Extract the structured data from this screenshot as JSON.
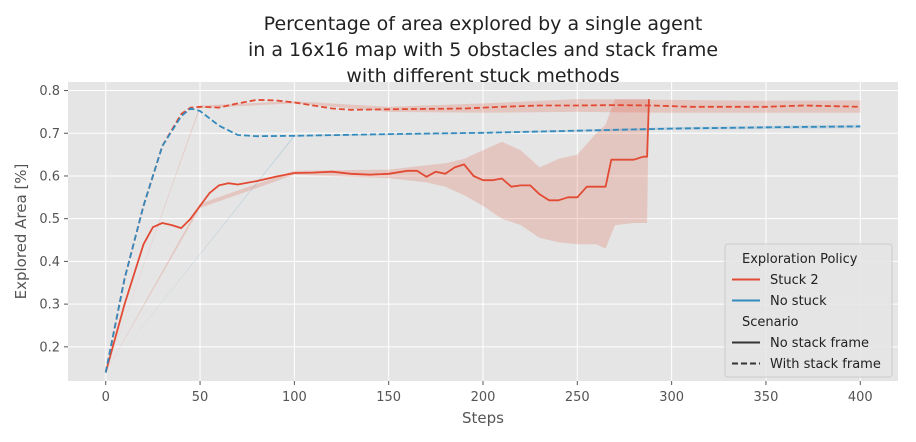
{
  "chart_data": {
    "type": "line",
    "title": "Percentage of area explored by a single agent\nin a 16x16 map with 5 obstacles and stack frame\nwith different stuck methods",
    "xlabel": "Steps",
    "ylabel": "Explored Area [%]",
    "xlim": [
      -20,
      420
    ],
    "ylim": [
      0.12,
      0.82
    ],
    "xticks": [
      0,
      50,
      100,
      150,
      200,
      250,
      300,
      350,
      400
    ],
    "yticks": [
      0.2,
      0.3,
      0.4,
      0.5,
      0.6,
      0.7,
      0.8
    ],
    "grid": true,
    "legend": {
      "placement": "lower-right",
      "policy_title": "Exploration Policy",
      "scenario_title": "Scenario",
      "policy_entries": [
        {
          "label": "Stuck 2",
          "color": "#E24A33"
        },
        {
          "label": "No stuck",
          "color": "#348ABD"
        }
      ],
      "scenario_entries": [
        {
          "label": "No stack frame",
          "style": "solid"
        },
        {
          "label": "With stack frame",
          "style": "dashed"
        }
      ]
    },
    "series": [
      {
        "policy": "Stuck 2",
        "scenario": "No stack frame",
        "color": "#E24A33",
        "style": "solid",
        "x": [
          0,
          10,
          20,
          25,
          30,
          35,
          40,
          45,
          50,
          55,
          60,
          65,
          70,
          80,
          90,
          100,
          110,
          120,
          130,
          140,
          150,
          160,
          165,
          170,
          175,
          180,
          185,
          190,
          195,
          200,
          205,
          210,
          215,
          220,
          225,
          230,
          235,
          240,
          245,
          250,
          255,
          260,
          265,
          268,
          275,
          280,
          285,
          287,
          288
        ],
        "y": [
          0.14,
          0.3,
          0.44,
          0.48,
          0.49,
          0.485,
          0.478,
          0.5,
          0.53,
          0.56,
          0.578,
          0.583,
          0.58,
          0.588,
          0.598,
          0.607,
          0.608,
          0.61,
          0.605,
          0.603,
          0.605,
          0.612,
          0.612,
          0.598,
          0.61,
          0.605,
          0.62,
          0.627,
          0.6,
          0.59,
          0.59,
          0.594,
          0.575,
          0.578,
          0.578,
          0.557,
          0.543,
          0.543,
          0.55,
          0.55,
          0.575,
          0.575,
          0.575,
          0.638,
          0.638,
          0.638,
          0.645,
          0.645,
          0.78
        ]
      },
      {
        "policy": "Stuck 2",
        "scenario": "With stack frame",
        "color": "#E24A33",
        "style": "dashed",
        "x": [
          0,
          10,
          20,
          30,
          40,
          45,
          50,
          60,
          70,
          80,
          90,
          100,
          110,
          120,
          130,
          150,
          170,
          190,
          210,
          230,
          250,
          270,
          290,
          310,
          330,
          350,
          370,
          400
        ],
        "y": [
          0.14,
          0.36,
          0.53,
          0.67,
          0.745,
          0.76,
          0.762,
          0.76,
          0.77,
          0.778,
          0.777,
          0.772,
          0.765,
          0.758,
          0.755,
          0.756,
          0.757,
          0.758,
          0.762,
          0.765,
          0.765,
          0.766,
          0.765,
          0.762,
          0.762,
          0.762,
          0.765,
          0.762
        ]
      },
      {
        "policy": "No stuck",
        "scenario": "With stack frame",
        "color": "#348ABD",
        "style": "dashed",
        "x": [
          0,
          10,
          20,
          30,
          40,
          45,
          50,
          55,
          60,
          70,
          80,
          100,
          150,
          200,
          250,
          300,
          350,
          400
        ],
        "y": [
          0.14,
          0.36,
          0.53,
          0.67,
          0.74,
          0.758,
          0.752,
          0.735,
          0.718,
          0.696,
          0.693,
          0.694,
          0.698,
          0.701,
          0.706,
          0.711,
          0.714,
          0.716
        ]
      }
    ],
    "bands": [
      {
        "series_index": 0,
        "color": "#E24A33",
        "x": [
          0,
          50,
          100,
          150,
          170,
          180,
          190,
          200,
          210,
          220,
          230,
          240,
          250,
          260,
          265,
          270,
          280,
          287,
          288
        ],
        "upper": [
          0.14,
          0.535,
          0.612,
          0.615,
          0.625,
          0.63,
          0.64,
          0.66,
          0.68,
          0.66,
          0.62,
          0.64,
          0.65,
          0.7,
          0.72,
          0.78,
          0.78,
          0.78,
          0.78
        ],
        "lower": [
          0.14,
          0.525,
          0.603,
          0.595,
          0.585,
          0.575,
          0.555,
          0.53,
          0.5,
          0.485,
          0.455,
          0.445,
          0.44,
          0.44,
          0.43,
          0.485,
          0.49,
          0.49,
          0.78
        ]
      },
      {
        "series_index": 1,
        "color": "#E24A33",
        "x": [
          0,
          50,
          100,
          150,
          200,
          250,
          300,
          350,
          400
        ],
        "upper": [
          0.14,
          0.765,
          0.775,
          0.762,
          0.77,
          0.78,
          0.778,
          0.776,
          0.777
        ],
        "lower": [
          0.14,
          0.759,
          0.77,
          0.75,
          0.748,
          0.75,
          0.748,
          0.748,
          0.748
        ]
      },
      {
        "series_index": 2,
        "color": "#348ABD",
        "x": [
          0,
          100,
          200,
          300,
          400
        ],
        "upper": [
          0.14,
          0.696,
          0.703,
          0.714,
          0.72
        ],
        "lower": [
          0.14,
          0.692,
          0.699,
          0.708,
          0.712
        ]
      }
    ]
  }
}
